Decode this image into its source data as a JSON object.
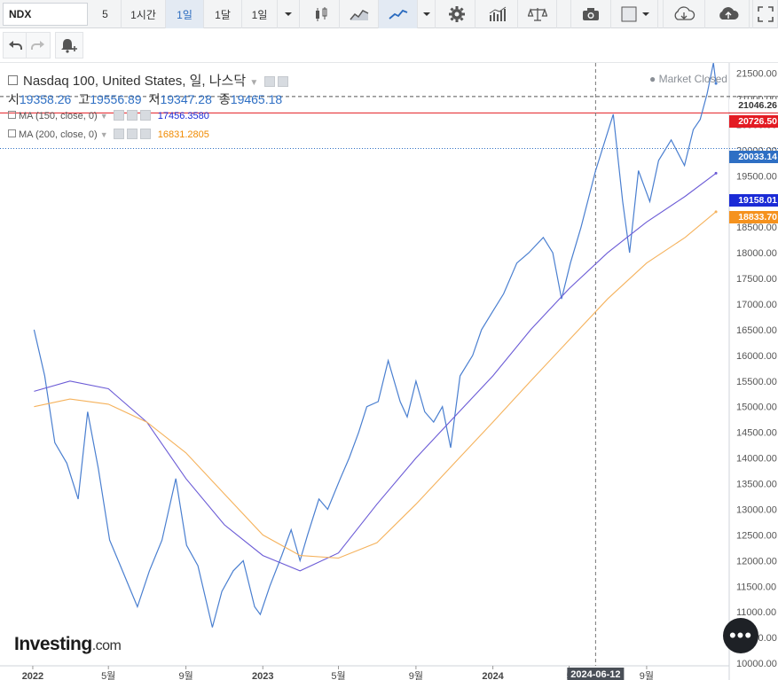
{
  "toolbar": {
    "symbol": "NDX",
    "intervals": [
      "5",
      "1시간",
      "1일",
      "1달",
      "1일"
    ],
    "selected_interval_index": 2,
    "icons": [
      "candlestick-icon",
      "area-chart-icon",
      "line-chart-icon",
      "dropdown-arrow-icon",
      "gear-icon",
      "bar-chart-icon",
      "balance-scale-icon",
      "camera-icon",
      "square-icon",
      "cloud-download-icon",
      "cloud-upload-icon",
      "fullscreen-icon"
    ]
  },
  "toolbar2": {
    "icons": [
      "undo-icon",
      "redo-icon",
      "alert-add-icon"
    ]
  },
  "legend": {
    "title": "Nasdaq 100, United States, 일, 나스닥",
    "ohlc": [
      {
        "label": "시",
        "value": "19358.26"
      },
      {
        "label": "고",
        "value": "19556.89"
      },
      {
        "label": "저",
        "value": "19347.28"
      },
      {
        "label": "종",
        "value": "19465.18"
      }
    ],
    "ma150_label": "MA (150, close, 0)",
    "ma150_value": "17456.3580",
    "ma200_label": "MA (200, close, 0)",
    "ma200_value": "16831.2805",
    "market_status": "Market Closed"
  },
  "price_tags": [
    {
      "text": "21046.26",
      "color": "#ffffff",
      "text_color": "#333333"
    },
    {
      "text": "20726.50",
      "color": "#e31b23",
      "text_color": "#ffffff"
    },
    {
      "text": "20033.14",
      "color": "#2e6fc4",
      "text_color": "#ffffff"
    },
    {
      "text": "19158.01",
      "color": "#1b2bd6",
      "text_color": "#ffffff"
    },
    {
      "text": "18833.70",
      "color": "#f5921e",
      "text_color": "#ffffff"
    }
  ],
  "crosshair_date": "2024-06-12",
  "brand": {
    "name": "Investing",
    "suffix": ".com"
  },
  "more_button": "•••",
  "colors": {
    "price_line": "#4a7fd0",
    "ma150": "#6b5bd6",
    "ma200": "#f5b25c",
    "red_line": "#e31b23",
    "accent": "#2e6fc4"
  },
  "chart_data": {
    "type": "line",
    "x_tick_labels": [
      "2022",
      "5월",
      "9월",
      "2023",
      "5월",
      "9월",
      "2024",
      "5",
      "9월"
    ],
    "y_tick_labels": [
      "21500.00",
      "21000.00",
      "20500.00",
      "20000.00",
      "19500.00",
      "19000.00",
      "18500.00",
      "18000.00",
      "17500.00",
      "17000.00",
      "16500.00",
      "16000.00",
      "15500.00",
      "15000.00",
      "14500.00",
      "14000.00",
      "13500.00",
      "13000.00",
      "12500.00",
      "12000.00",
      "11500.00",
      "11000.00",
      "10500.00",
      "10000.00"
    ],
    "ylim": [
      9950,
      21700
    ],
    "series": [
      {
        "name": "Nasdaq 100",
        "x": [
          "2022-01-03",
          "2022-01-20",
          "2022-02-05",
          "2022-02-24",
          "2022-03-14",
          "2022-03-29",
          "2022-04-15",
          "2022-05-03",
          "2022-05-20",
          "2022-06-16",
          "2022-07-05",
          "2022-07-25",
          "2022-08-16",
          "2022-09-02",
          "2022-09-20",
          "2022-10-13",
          "2022-10-28",
          "2022-11-15",
          "2022-12-01",
          "2022-12-19",
          "2022-12-28",
          "2023-01-12",
          "2023-01-31",
          "2023-02-15",
          "2023-03-01",
          "2023-03-13",
          "2023-03-31",
          "2023-04-14",
          "2023-05-04",
          "2023-05-18",
          "2023-06-02",
          "2023-06-15",
          "2023-07-03",
          "2023-07-19",
          "2023-08-07",
          "2023-08-18",
          "2023-09-01",
          "2023-09-15",
          "2023-09-29",
          "2023-10-13",
          "2023-10-26",
          "2023-11-10",
          "2023-11-30",
          "2023-12-14",
          "2023-12-29",
          "2024-01-18",
          "2024-02-08",
          "2024-02-27",
          "2024-03-21",
          "2024-04-05",
          "2024-04-19",
          "2024-05-03",
          "2024-05-20",
          "2024-06-12",
          "2024-07-10",
          "2024-07-25",
          "2024-08-05",
          "2024-08-19",
          "2024-09-06",
          "2024-09-20",
          "2024-10-10",
          "2024-10-31",
          "2024-11-14",
          "2024-11-25",
          "2024-12-06",
          "2024-12-16",
          "2024-12-20"
        ],
        "values": [
          16500,
          15600,
          14300,
          13900,
          13200,
          14900,
          13800,
          12400,
          11900,
          11100,
          11800,
          12400,
          13600,
          12300,
          11900,
          10700,
          11400,
          11800,
          12000,
          11100,
          10950,
          11500,
          12100,
          12600,
          12000,
          12500,
          13200,
          13000,
          13600,
          14000,
          14500,
          15000,
          15100,
          15900,
          15100,
          14800,
          15500,
          14900,
          14700,
          15000,
          14200,
          15600,
          16000,
          16500,
          16800,
          17200,
          17800,
          18000,
          18300,
          18000,
          17100,
          17800,
          18500,
          19600,
          20700,
          19000,
          18000,
          19600,
          19000,
          19800,
          20200,
          19700,
          20400,
          20600,
          21100,
          21700,
          21300
        ]
      },
      {
        "name": "MA (150, close, 0)",
        "x": [
          "2022-01-03",
          "2022-03-01",
          "2022-05-01",
          "2022-07-01",
          "2022-09-01",
          "2022-11-01",
          "2023-01-01",
          "2023-03-01",
          "2023-05-01",
          "2023-07-01",
          "2023-09-01",
          "2023-11-01",
          "2024-01-01",
          "2024-03-01",
          "2024-05-01",
          "2024-07-01",
          "2024-09-01",
          "2024-11-01",
          "2024-12-20"
        ],
        "values": [
          15300,
          15500,
          15350,
          14700,
          13600,
          12700,
          12100,
          11800,
          12150,
          13100,
          14000,
          14800,
          15600,
          16500,
          17300,
          18000,
          18600,
          19100,
          19550
        ]
      },
      {
        "name": "MA (200, close, 0)",
        "x": [
          "2022-01-03",
          "2022-03-01",
          "2022-05-01",
          "2022-07-01",
          "2022-09-01",
          "2022-11-01",
          "2023-01-01",
          "2023-03-01",
          "2023-05-01",
          "2023-07-01",
          "2023-09-01",
          "2023-11-01",
          "2024-01-01",
          "2024-03-01",
          "2024-05-01",
          "2024-07-01",
          "2024-09-01",
          "2024-11-01",
          "2024-12-20"
        ],
        "values": [
          15000,
          15150,
          15050,
          14700,
          14100,
          13300,
          12500,
          12100,
          12050,
          12350,
          13100,
          13900,
          14700,
          15500,
          16300,
          17100,
          17800,
          18300,
          18800
        ]
      }
    ],
    "horizontal_lines": [
      {
        "value": 21046.26,
        "style": "dashed",
        "color": "#555555"
      },
      {
        "value": 20726.5,
        "style": "solid",
        "color": "#e31b23"
      },
      {
        "value": 20033.14,
        "style": "dotted",
        "color": "#2e6fc4"
      }
    ],
    "vertical_marker": {
      "date": "2024-06-12",
      "style": "dashed"
    },
    "legend_position": "top-left",
    "grid": false
  }
}
